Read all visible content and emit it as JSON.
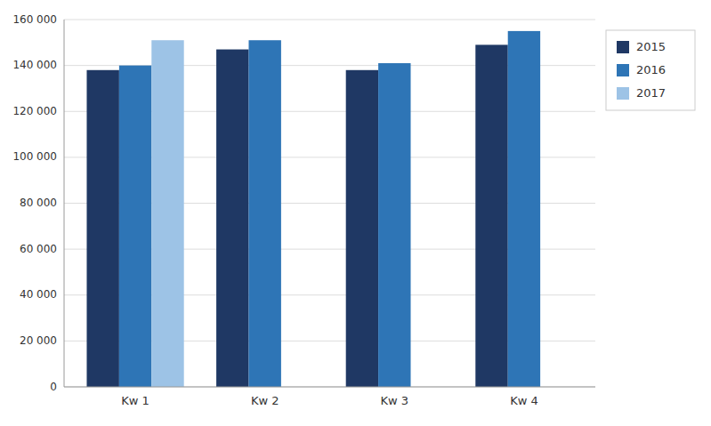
{
  "chart_data": {
    "type": "bar",
    "categories": [
      "Kw 1",
      "Kw 2",
      "Kw 3",
      "Kw 4"
    ],
    "series": [
      {
        "name": "2015",
        "color": "#1f3864",
        "values": [
          138000,
          147000,
          138000,
          149000
        ]
      },
      {
        "name": "2016",
        "color": "#2e75b6",
        "values": [
          140000,
          151000,
          141000,
          155000
        ]
      },
      {
        "name": "2017",
        "color": "#9dc3e6",
        "values": [
          151000,
          null,
          null,
          null
        ]
      }
    ],
    "ylim": [
      0,
      160000
    ],
    "yticks": [
      0,
      {
        "value": 20000,
        "label": "20 000"
      },
      {
        "value": 40000,
        "label": "40 000"
      },
      {
        "value": 60000,
        "label": "60 000"
      },
      {
        "value": 80000,
        "label": "80 000"
      },
      {
        "value": 100000,
        "label": "100 000"
      },
      {
        "value": 120000,
        "label": "120 000"
      },
      {
        "value": 140000,
        "label": "140 000"
      },
      {
        "value": 160000,
        "label": "160 000"
      }
    ],
    "grid": true,
    "legend": "right"
  }
}
